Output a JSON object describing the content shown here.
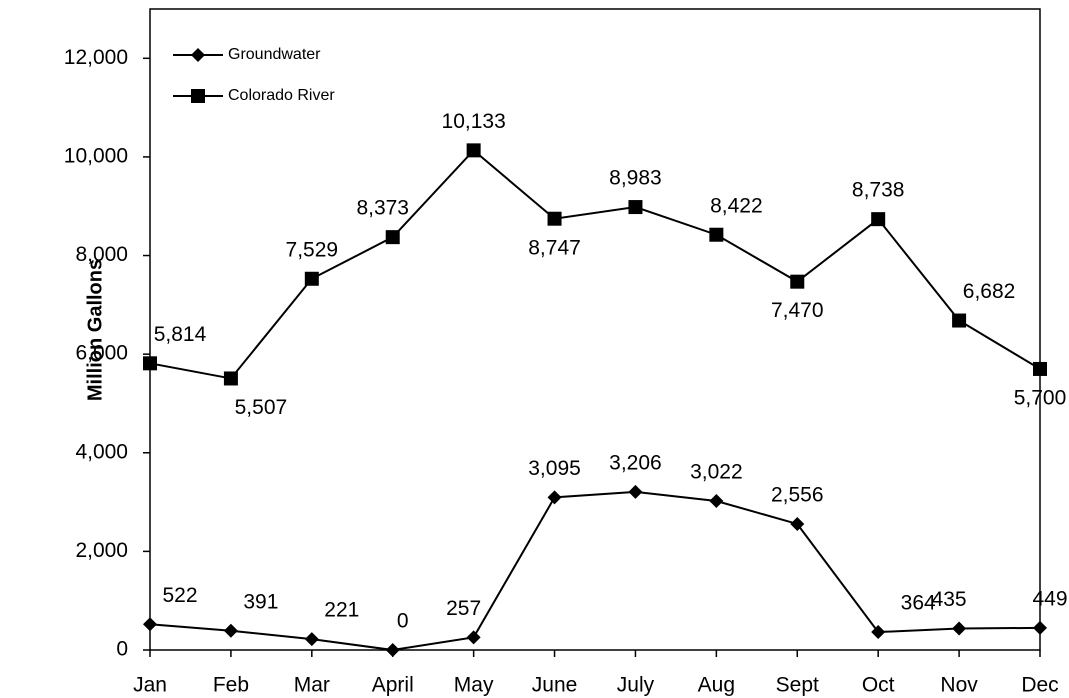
{
  "chart_data": {
    "type": "line",
    "y_label": "Million Gallons",
    "categories": [
      "Jan",
      "Feb",
      "Mar",
      "April",
      "May",
      "June",
      "July",
      "Aug",
      "Sept",
      "Oct",
      "Nov",
      "Dec"
    ],
    "series": [
      {
        "name": "Groundwater",
        "color": "#000000",
        "marker": "diamond",
        "values": [
          522,
          391,
          221,
          0,
          257,
          3095,
          3206,
          3022,
          2556,
          364,
          435,
          449
        ],
        "value_labels": [
          "522",
          "391",
          "221",
          "0",
          "257",
          "3,095",
          "3,206",
          "3,022",
          "2,556",
          "364",
          "435",
          "449"
        ]
      },
      {
        "name": "Colorado River",
        "color": "#000000",
        "marker": "square",
        "values": [
          5814,
          5507,
          7529,
          8373,
          10133,
          8747,
          8983,
          8422,
          7470,
          8738,
          6682,
          5700
        ],
        "value_labels": [
          "5,814",
          "5,507",
          "7,529",
          "8,373",
          "10,133",
          "8,747",
          "8,983",
          "8,422",
          "7,470",
          "8,738",
          "6,682",
          "5,700"
        ]
      }
    ],
    "ylim": [
      0,
      13000
    ],
    "yticks": [
      0,
      {
        "value": 2000,
        "label": "2,000"
      },
      {
        "value": 4000,
        "label": "4,000"
      },
      {
        "value": 6000,
        "label": "6,000"
      },
      {
        "value": 8000,
        "label": "8,000"
      },
      {
        "value": 10000,
        "label": "10,000"
      },
      {
        "value": 12000,
        "label": "12,000"
      }
    ],
    "legend": "upper left",
    "grid": false
  }
}
